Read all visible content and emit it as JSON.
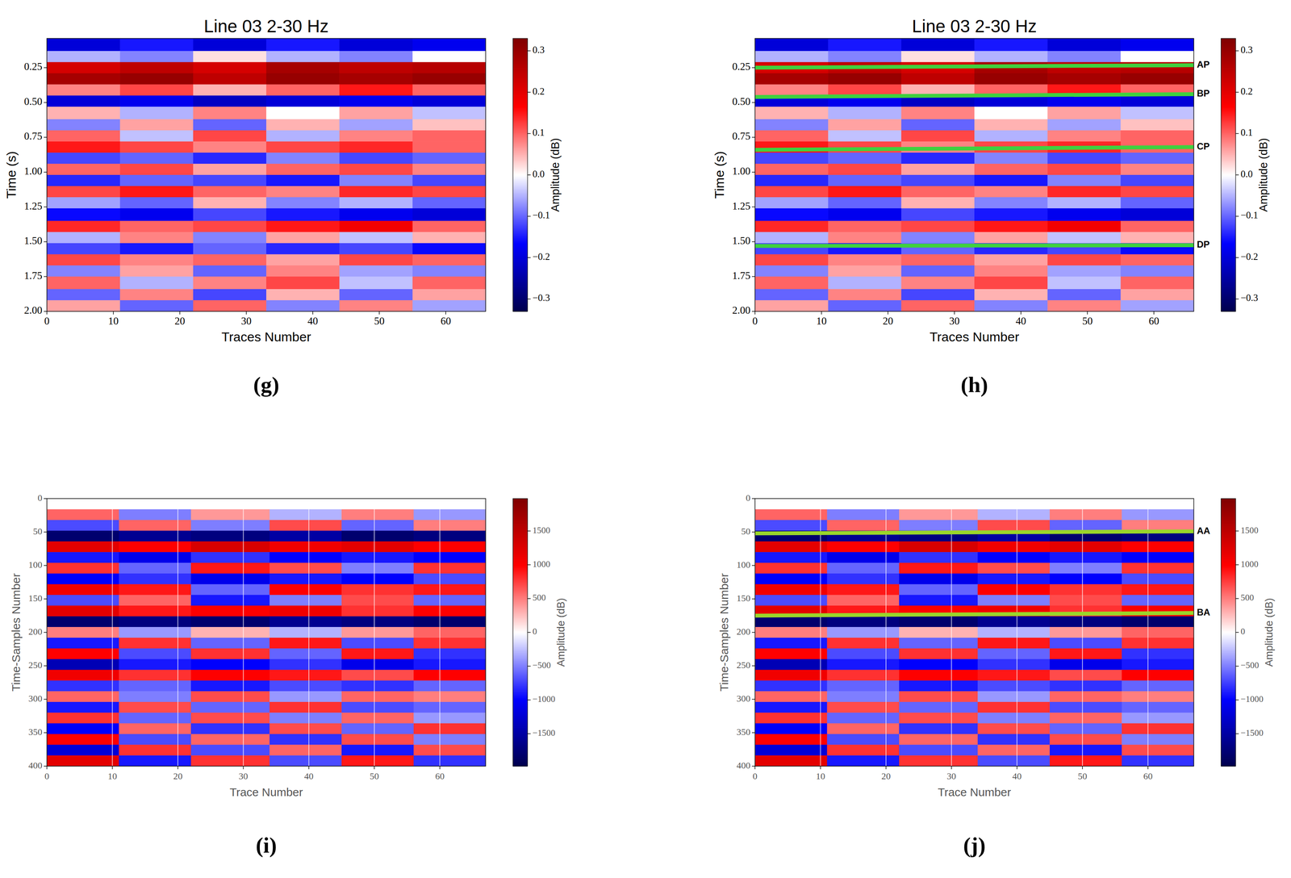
{
  "chart_data": [
    {
      "type": "heatmap",
      "title": "Line 03 2-30 Hz",
      "x_label": "Traces Number",
      "y_label": "Time (s)",
      "panel_label": "(g)",
      "xlim": [
        0,
        66
      ],
      "ylim": [
        0.04,
        2.0
      ],
      "xticks": [
        0,
        10,
        20,
        30,
        40,
        50,
        60
      ],
      "yticks": [
        0.25,
        {
          "value": 0.5,
          "label": "0.50"
        },
        0.75,
        {
          "value": 1.0,
          "label": "1.00"
        },
        1.25,
        {
          "value": 1.5,
          "label": "1.50"
        },
        1.75,
        {
          "value": 2.0,
          "label": "2.00"
        }
      ],
      "grid": false,
      "x_edges": [
        0,
        11,
        22,
        33,
        44,
        55,
        66
      ],
      "y_edges": [
        0.04,
        0.13,
        0.21,
        0.29,
        0.37,
        0.45,
        0.53,
        0.62,
        0.7,
        0.78,
        0.86,
        0.94,
        1.02,
        1.1,
        1.18,
        1.26,
        1.35,
        1.43,
        1.51,
        1.59,
        1.67,
        1.75,
        1.84,
        1.92,
        2.0
      ],
      "values": [
        [
          -0.2,
          -0.15,
          -0.2,
          -0.15,
          -0.2,
          -0.18
        ],
        [
          -0.05,
          -0.08,
          0.02,
          -0.05,
          -0.08,
          0.0
        ],
        [
          0.22,
          0.25,
          0.22,
          0.28,
          0.25,
          0.26
        ],
        [
          0.28,
          0.3,
          0.25,
          0.3,
          0.28,
          0.3
        ],
        [
          0.08,
          0.12,
          0.05,
          0.1,
          0.15,
          0.1
        ],
        [
          -0.2,
          -0.18,
          -0.22,
          -0.2,
          -0.18,
          -0.2
        ],
        [
          0.05,
          -0.05,
          0.08,
          0.0,
          0.06,
          -0.04
        ],
        [
          -0.08,
          0.06,
          -0.1,
          0.05,
          -0.06,
          0.04
        ],
        [
          0.1,
          -0.04,
          0.12,
          -0.05,
          0.08,
          0.1
        ],
        [
          0.15,
          0.12,
          0.08,
          0.12,
          0.14,
          0.1
        ],
        [
          -0.12,
          -0.1,
          -0.14,
          -0.08,
          -0.12,
          -0.1
        ],
        [
          0.1,
          0.12,
          0.06,
          0.1,
          0.12,
          0.08
        ],
        [
          -0.14,
          -0.1,
          -0.12,
          -0.15,
          -0.08,
          -0.12
        ],
        [
          0.12,
          0.15,
          0.1,
          0.08,
          0.14,
          0.12
        ],
        [
          -0.06,
          -0.1,
          0.05,
          -0.08,
          -0.05,
          -0.1
        ],
        [
          -0.16,
          -0.18,
          -0.12,
          -0.15,
          -0.18,
          -0.2
        ],
        [
          0.14,
          0.1,
          0.12,
          0.15,
          0.18,
          0.1
        ],
        [
          -0.05,
          0.08,
          -0.08,
          0.06,
          -0.04,
          0.05
        ],
        [
          -0.12,
          -0.15,
          -0.1,
          -0.14,
          -0.12,
          -0.16
        ],
        [
          0.12,
          0.08,
          0.1,
          0.06,
          0.12,
          0.1
        ],
        [
          -0.08,
          0.06,
          -0.1,
          0.08,
          -0.06,
          -0.08
        ],
        [
          0.1,
          -0.05,
          0.08,
          0.12,
          -0.04,
          0.1
        ],
        [
          -0.1,
          0.08,
          -0.12,
          0.05,
          -0.1,
          0.06
        ],
        [
          0.06,
          -0.1,
          0.1,
          -0.08,
          0.08,
          -0.06
        ]
      ],
      "colorbar": {
        "label": "Amplitude (dB)",
        "range": [
          -0.33,
          0.33
        ],
        "ticks": [
          {
            "value": -0.3,
            "label": "−0.3"
          },
          {
            "value": -0.2,
            "label": "−0.2"
          },
          {
            "value": -0.1,
            "label": "−0.1"
          },
          {
            "value": 0,
            "label": "0.0"
          },
          0.1,
          0.2,
          0.3
        ]
      },
      "horizons": []
    },
    {
      "type": "heatmap",
      "title": "Line 03 2-30 Hz",
      "x_label": "Traces Number",
      "y_label": "Time (s)",
      "panel_label": "(h)",
      "xlim": [
        0,
        66
      ],
      "ylim": [
        0.04,
        2.0
      ],
      "xticks": [
        0,
        10,
        20,
        30,
        40,
        50,
        60
      ],
      "yticks": [
        0.25,
        {
          "value": 0.5,
          "label": "0.50"
        },
        0.75,
        {
          "value": 1.0,
          "label": "1.00"
        },
        1.25,
        {
          "value": 1.5,
          "label": "1.50"
        },
        1.75,
        {
          "value": 2.0,
          "label": "2.00"
        }
      ],
      "grid": false,
      "x_edges": [
        0,
        11,
        22,
        33,
        44,
        55,
        66
      ],
      "y_edges": [
        0.04,
        0.13,
        0.21,
        0.29,
        0.37,
        0.45,
        0.53,
        0.62,
        0.7,
        0.78,
        0.86,
        0.94,
        1.02,
        1.1,
        1.18,
        1.26,
        1.35,
        1.43,
        1.51,
        1.59,
        1.67,
        1.75,
        1.84,
        1.92,
        2.0
      ],
      "values": [
        [
          -0.2,
          -0.15,
          -0.2,
          -0.15,
          -0.2,
          -0.18
        ],
        [
          -0.05,
          -0.08,
          0.02,
          -0.05,
          -0.08,
          0.0
        ],
        [
          0.22,
          0.25,
          0.22,
          0.28,
          0.25,
          0.26
        ],
        [
          0.28,
          0.3,
          0.25,
          0.3,
          0.28,
          0.3
        ],
        [
          0.08,
          0.12,
          0.05,
          0.1,
          0.15,
          0.1
        ],
        [
          -0.2,
          -0.18,
          -0.22,
          -0.2,
          -0.18,
          -0.2
        ],
        [
          0.05,
          -0.05,
          0.08,
          0.0,
          0.06,
          -0.04
        ],
        [
          -0.08,
          0.06,
          -0.1,
          0.05,
          -0.06,
          0.04
        ],
        [
          0.1,
          -0.04,
          0.12,
          -0.05,
          0.08,
          0.1
        ],
        [
          0.15,
          0.12,
          0.08,
          0.12,
          0.14,
          0.1
        ],
        [
          -0.12,
          -0.1,
          -0.14,
          -0.08,
          -0.12,
          -0.1
        ],
        [
          0.1,
          0.12,
          0.06,
          0.1,
          0.12,
          0.08
        ],
        [
          -0.14,
          -0.1,
          -0.12,
          -0.15,
          -0.08,
          -0.12
        ],
        [
          0.12,
          0.15,
          0.1,
          0.08,
          0.14,
          0.12
        ],
        [
          -0.06,
          -0.1,
          0.05,
          -0.08,
          -0.05,
          -0.1
        ],
        [
          -0.16,
          -0.18,
          -0.12,
          -0.15,
          -0.18,
          -0.2
        ],
        [
          0.14,
          0.1,
          0.12,
          0.15,
          0.18,
          0.1
        ],
        [
          -0.05,
          0.08,
          -0.08,
          0.06,
          -0.04,
          0.05
        ],
        [
          -0.12,
          -0.15,
          -0.1,
          -0.14,
          -0.12,
          -0.16
        ],
        [
          0.12,
          0.08,
          0.1,
          0.06,
          0.12,
          0.1
        ],
        [
          -0.08,
          0.06,
          -0.1,
          0.08,
          -0.06,
          -0.08
        ],
        [
          0.1,
          -0.05,
          0.08,
          0.12,
          -0.04,
          0.1
        ],
        [
          -0.1,
          0.08,
          -0.12,
          0.05,
          -0.1,
          0.06
        ],
        [
          0.06,
          -0.1,
          0.1,
          -0.08,
          0.08,
          -0.06
        ]
      ],
      "colorbar": {
        "label": "Amplitude (dB)",
        "range": [
          -0.33,
          0.33
        ],
        "ticks": [
          {
            "value": -0.3,
            "label": "−0.3"
          },
          {
            "value": -0.2,
            "label": "−0.2"
          },
          {
            "value": -0.1,
            "label": "−0.1"
          },
          {
            "value": 0,
            "label": "0.0"
          },
          0.1,
          0.2,
          0.3
        ]
      },
      "horizons": [
        {
          "label": "AP",
          "color": "#3fd13f",
          "x": [
            0,
            66
          ],
          "values": [
            0.25,
            0.232
          ]
        },
        {
          "label": "BP",
          "color": "#3fd13f",
          "x": [
            0,
            66
          ],
          "values": [
            0.46,
            0.44
          ]
        },
        {
          "label": "CP",
          "color": "#3fd13f",
          "x": [
            0,
            66
          ],
          "values": [
            0.84,
            0.82
          ]
        },
        {
          "label": "DP",
          "color": "#3fd13f",
          "x": [
            0,
            66
          ],
          "values": [
            1.53,
            1.525
          ]
        }
      ]
    },
    {
      "type": "heatmap",
      "x_label": "Trace Number",
      "y_label": "Time-Samples Number",
      "panel_label": "(i)",
      "xlim": [
        0,
        67
      ],
      "ylim": [
        0,
        400
      ],
      "xticks": [
        0,
        10,
        20,
        30,
        40,
        50,
        60
      ],
      "yticks": [
        0,
        50,
        100,
        150,
        200,
        250,
        300,
        350,
        400
      ],
      "grid": true,
      "x_edges": [
        0,
        11,
        22,
        34,
        45,
        56,
        67
      ],
      "y_edges": [
        0,
        16,
        32,
        48,
        64,
        80,
        96,
        112,
        128,
        144,
        160,
        176,
        192,
        208,
        224,
        240,
        256,
        272,
        288,
        304,
        320,
        336,
        352,
        368,
        384,
        400
      ],
      "values": [
        [
          0,
          0,
          0,
          0,
          0,
          0
        ],
        [
          600,
          -500,
          400,
          -300,
          500,
          -400
        ],
        [
          -700,
          600,
          -500,
          700,
          -600,
          500
        ],
        [
          -1800,
          -1600,
          -1700,
          -1500,
          -1800,
          -1700
        ],
        [
          1200,
          1000,
          1300,
          1100,
          1200,
          1000
        ],
        [
          -900,
          -1100,
          -800,
          -1000,
          -900,
          -1000
        ],
        [
          800,
          -600,
          900,
          700,
          -500,
          800
        ],
        [
          -1000,
          -800,
          -1100,
          -900,
          -1000,
          -700
        ],
        [
          1100,
          900,
          -600,
          1000,
          800,
          900
        ],
        [
          -700,
          600,
          -900,
          -500,
          700,
          -600
        ],
        [
          1200,
          900,
          1000,
          1100,
          800,
          1000
        ],
        [
          -1800,
          -1700,
          -1800,
          -1600,
          -1700,
          -1800
        ],
        [
          500,
          -400,
          300,
          -300,
          400,
          600
        ],
        [
          -900,
          800,
          -600,
          900,
          -700,
          800
        ],
        [
          1000,
          -700,
          800,
          -600,
          900,
          -800
        ],
        [
          -1400,
          -900,
          -1000,
          -800,
          -1100,
          -900
        ],
        [
          1100,
          800,
          1000,
          900,
          700,
          1000
        ],
        [
          -800,
          -600,
          -900,
          -700,
          -800,
          -600
        ],
        [
          600,
          -500,
          700,
          -400,
          600,
          500
        ],
        [
          -900,
          700,
          -600,
          800,
          -700,
          -600
        ],
        [
          800,
          -600,
          700,
          -500,
          600,
          -400
        ],
        [
          -1000,
          600,
          -800,
          700,
          -600,
          800
        ],
        [
          1000,
          -700,
          600,
          -800,
          700,
          -500
        ],
        [
          -1200,
          800,
          -700,
          600,
          -900,
          700
        ],
        [
          1200,
          -900,
          800,
          -700,
          900,
          -800
        ]
      ],
      "colorbar": {
        "label": "Amplitude (dB)",
        "range": [
          -1980,
          1980
        ],
        "ticks": [
          {
            "value": -1500,
            "label": "−1500"
          },
          {
            "value": -1000,
            "label": "−1000"
          },
          {
            "value": -500,
            "label": "−500"
          },
          0,
          500,
          1000,
          1500
        ]
      },
      "horizons": []
    },
    {
      "type": "heatmap",
      "x_label": "Trace Number",
      "y_label": "Time-Samples Number",
      "panel_label": "(j)",
      "xlim": [
        0,
        67
      ],
      "ylim": [
        0,
        400
      ],
      "xticks": [
        0,
        10,
        20,
        30,
        40,
        50,
        60
      ],
      "yticks": [
        0,
        50,
        100,
        150,
        200,
        250,
        300,
        350,
        400
      ],
      "grid": true,
      "x_edges": [
        0,
        11,
        22,
        34,
        45,
        56,
        67
      ],
      "y_edges": [
        0,
        16,
        32,
        48,
        64,
        80,
        96,
        112,
        128,
        144,
        160,
        176,
        192,
        208,
        224,
        240,
        256,
        272,
        288,
        304,
        320,
        336,
        352,
        368,
        384,
        400
      ],
      "values": [
        [
          0,
          0,
          0,
          0,
          0,
          0
        ],
        [
          600,
          -500,
          400,
          -300,
          500,
          -400
        ],
        [
          -700,
          600,
          -500,
          700,
          -600,
          500
        ],
        [
          -1800,
          -1600,
          -1700,
          -1500,
          -1800,
          -1700
        ],
        [
          1200,
          1000,
          1300,
          1100,
          1200,
          1000
        ],
        [
          -900,
          -1100,
          -800,
          -1000,
          -900,
          -1000
        ],
        [
          800,
          -600,
          900,
          700,
          -500,
          800
        ],
        [
          -1000,
          -800,
          -1100,
          -900,
          -1000,
          -700
        ],
        [
          1100,
          900,
          -600,
          1000,
          800,
          900
        ],
        [
          -700,
          600,
          -900,
          -500,
          700,
          -600
        ],
        [
          1200,
          900,
          1000,
          1100,
          800,
          1000
        ],
        [
          -1800,
          -1700,
          -1800,
          -1600,
          -1700,
          -1800
        ],
        [
          500,
          -400,
          300,
          -300,
          400,
          600
        ],
        [
          -900,
          800,
          -600,
          900,
          -700,
          800
        ],
        [
          1000,
          -700,
          800,
          -600,
          900,
          -800
        ],
        [
          -1400,
          -900,
          -1000,
          -800,
          -1100,
          -900
        ],
        [
          1100,
          800,
          1000,
          900,
          700,
          1000
        ],
        [
          -800,
          -600,
          -900,
          -700,
          -800,
          -600
        ],
        [
          600,
          -500,
          700,
          -400,
          600,
          500
        ],
        [
          -900,
          700,
          -600,
          800,
          -700,
          -600
        ],
        [
          800,
          -600,
          700,
          -500,
          600,
          -400
        ],
        [
          -1000,
          600,
          -800,
          700,
          -600,
          800
        ],
        [
          1000,
          -700,
          600,
          -800,
          700,
          -500
        ],
        [
          -1200,
          800,
          -700,
          600,
          -900,
          700
        ],
        [
          1200,
          -900,
          800,
          -700,
          900,
          -800
        ]
      ],
      "colorbar": {
        "label": "Amplitude (dB)",
        "range": [
          -1980,
          1980
        ],
        "ticks": [
          {
            "value": -1500,
            "label": "−1500"
          },
          {
            "value": -1000,
            "label": "−1000"
          },
          {
            "value": -500,
            "label": "−500"
          },
          0,
          500,
          1000,
          1500
        ]
      },
      "horizons": [
        {
          "label": "AA",
          "color": "#9ad62a",
          "x": [
            0,
            67
          ],
          "values": [
            52,
            49
          ]
        },
        {
          "label": "BA",
          "color": "#9ad62a",
          "x": [
            0,
            67
          ],
          "values": [
            175,
            171
          ]
        }
      ]
    }
  ]
}
